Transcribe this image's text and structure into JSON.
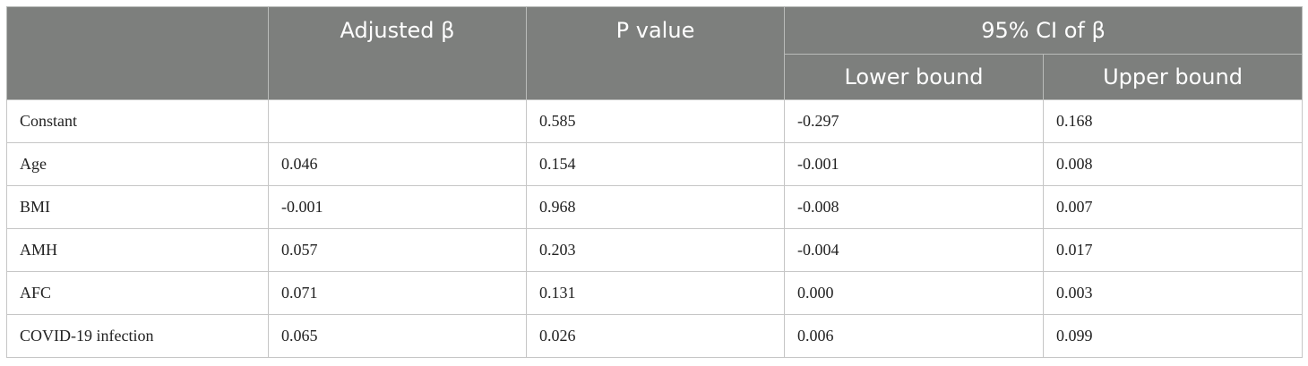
{
  "table": {
    "header": {
      "row_label": "",
      "adjusted_beta": "Adjusted β",
      "p_value": "P value",
      "ci_group": "95% CI of β",
      "lower_bound": "Lower bound",
      "upper_bound": "Upper bound"
    },
    "rows": [
      {
        "label": "Constant",
        "adjusted_beta": "",
        "p_value": "0.585",
        "lower": "-0.297",
        "upper": "0.168"
      },
      {
        "label": "Age",
        "adjusted_beta": "0.046",
        "p_value": "0.154",
        "lower": "-0.001",
        "upper": "0.008"
      },
      {
        "label": "BMI",
        "adjusted_beta": "-0.001",
        "p_value": "0.968",
        "lower": "-0.008",
        "upper": "0.007"
      },
      {
        "label": "AMH",
        "adjusted_beta": "0.057",
        "p_value": "0.203",
        "lower": "-0.004",
        "upper": "0.017"
      },
      {
        "label": "AFC",
        "adjusted_beta": "0.071",
        "p_value": "0.131",
        "lower": "0.000",
        "upper": "0.003"
      },
      {
        "label": "COVID-19 infection",
        "adjusted_beta": "0.065",
        "p_value": "0.026",
        "lower": "0.006",
        "upper": "0.099"
      }
    ]
  }
}
